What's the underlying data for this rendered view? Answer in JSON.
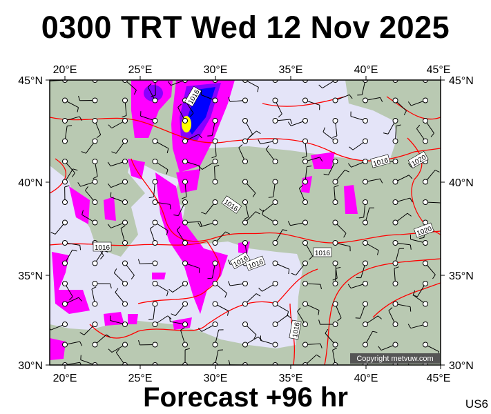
{
  "title": "0300 TRT Wed 12 Nov 2025",
  "footer": "Forecast +96 hr",
  "model_code": "US6",
  "copyright": "Copyright metvuw.com",
  "map": {
    "lon_labels": [
      "20°E",
      "25°E",
      "30°E",
      "35°E",
      "40°E",
      "45°E"
    ],
    "lat_labels": [
      "45°N",
      "40°N",
      "35°N",
      "30°N"
    ],
    "isobar_labels": [
      "1016",
      "1016",
      "1016",
      "1016",
      "1016",
      "1016",
      "1020",
      "1020"
    ],
    "colors": {
      "sea": "#e4e4f8",
      "land": "#b9c9b2",
      "isobar": "#ff0000",
      "precip_light": "#ff00ff",
      "precip_mid": "#8800ff",
      "precip_heavy": "#0000ff",
      "precip_max": "#ffff00"
    }
  }
}
